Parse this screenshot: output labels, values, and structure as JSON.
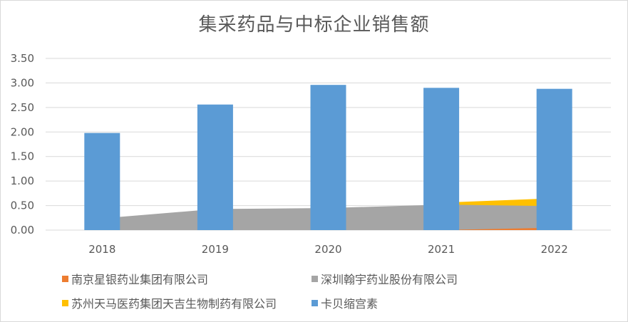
{
  "chart_data": {
    "type": "bar",
    "title": "集采药品与中标企业销售额",
    "categories": [
      "2018",
      "2019",
      "2020",
      "2021",
      "2022"
    ],
    "ylim": [
      0,
      3.5
    ],
    "yticks": [
      "0.00",
      "0.50",
      "1.00",
      "1.50",
      "2.00",
      "2.50",
      "3.00",
      "3.50"
    ],
    "grid": true,
    "legend_position": "bottom",
    "series": [
      {
        "name": "南京星银药业集团有限公司",
        "kind": "area",
        "color": "#ed7d31",
        "values": [
          0,
          0,
          0,
          0,
          0.05
        ]
      },
      {
        "name": "深圳翰宇药业股份有限公司",
        "kind": "area",
        "color": "#a5a5a5",
        "values": [
          0.24,
          0.43,
          0.45,
          0.52,
          0.49
        ]
      },
      {
        "name": "苏州天马医药集团天吉生物制药有限公司",
        "kind": "area",
        "color": "#ffc000",
        "values": [
          0,
          0,
          0,
          0.56,
          0.65
        ]
      },
      {
        "name": "卡贝缩宫素",
        "kind": "bar",
        "color": "#5b9bd5",
        "values": [
          1.98,
          2.56,
          2.96,
          2.9,
          2.88
        ]
      }
    ]
  }
}
